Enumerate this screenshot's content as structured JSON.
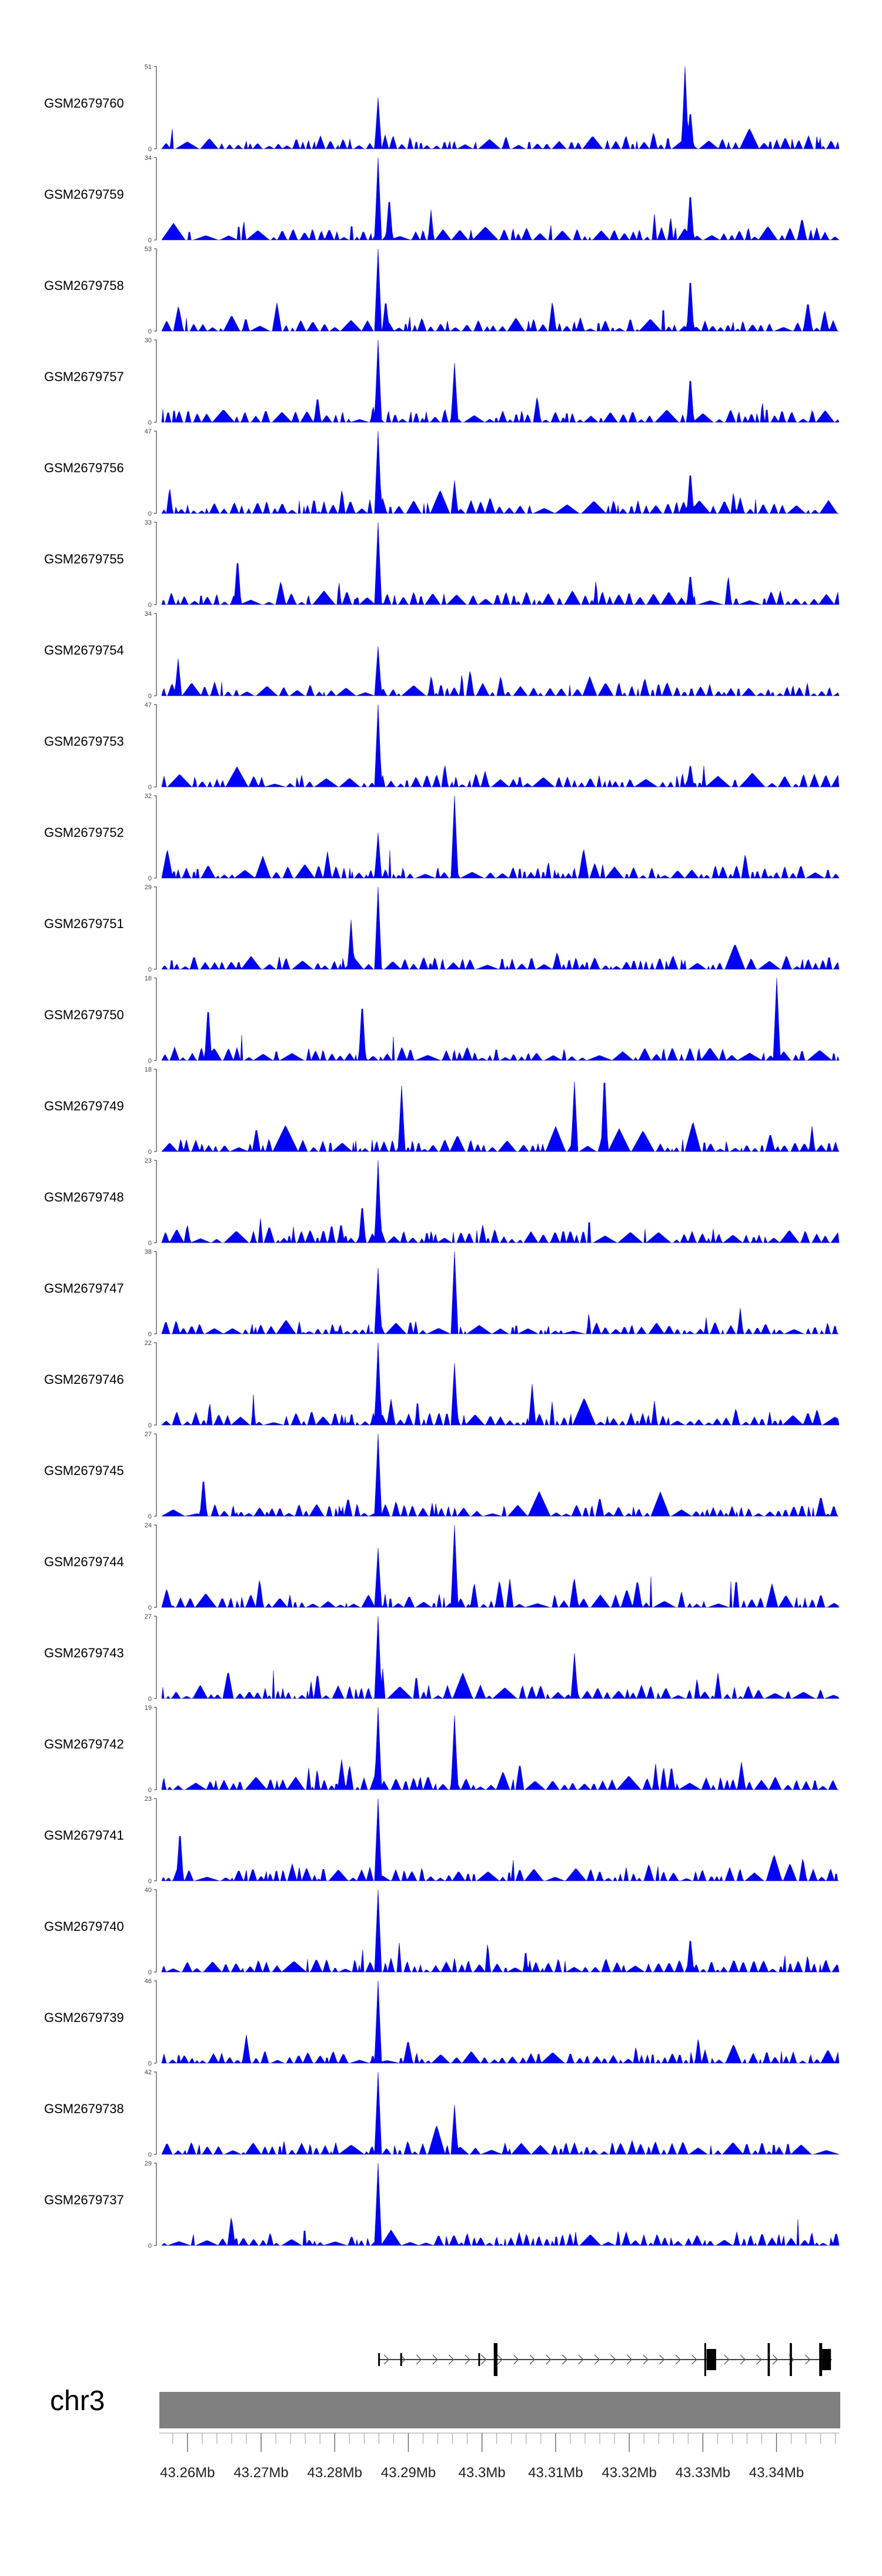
{
  "chart_data": {
    "type": "area",
    "title": "",
    "genome": {
      "chromosome": "chr3",
      "x_range_mb": [
        43.2565,
        43.3485
      ],
      "ticks_mb": [
        43.26,
        43.27,
        43.28,
        43.29,
        43.3,
        43.31,
        43.32,
        43.33,
        43.34
      ],
      "tick_labels": [
        "43.26Mb",
        "43.27Mb",
        "43.28Mb",
        "43.29Mb",
        "43.3Mb",
        "43.31Mb",
        "43.32Mb",
        "43.33Mb",
        "43.34Mb"
      ],
      "minor_tick_step_mb": 0.002
    },
    "tracks": [
      {
        "name": "GSM2679760",
        "ymax": 51,
        "ymin": 0,
        "peaks": [
          [
            43.2859,
            0.62
          ],
          [
            43.3276,
            1.0
          ],
          [
            43.3283,
            0.5
          ]
        ]
      },
      {
        "name": "GSM2679759",
        "ymax": 34,
        "ymin": 0,
        "peaks": [
          [
            43.2859,
            1.0
          ],
          [
            43.2874,
            0.55
          ],
          [
            43.3283,
            0.62
          ]
        ]
      },
      {
        "name": "GSM2679758",
        "ymax": 53,
        "ymin": 0,
        "peaks": [
          [
            43.2859,
            1.0
          ],
          [
            43.2869,
            0.4
          ],
          [
            43.3283,
            0.7
          ]
        ]
      },
      {
        "name": "GSM2679757",
        "ymax": 30,
        "ymin": 0,
        "peaks": [
          [
            43.2859,
            1.0
          ],
          [
            43.2963,
            0.72
          ],
          [
            43.3283,
            0.6
          ]
        ]
      },
      {
        "name": "GSM2679756",
        "ymax": 47,
        "ymin": 0,
        "peaks": [
          [
            43.2859,
            1.0
          ],
          [
            43.2963,
            0.4
          ],
          [
            43.3283,
            0.55
          ]
        ]
      },
      {
        "name": "GSM2679755",
        "ymax": 33,
        "ymin": 0,
        "peaks": [
          [
            43.2859,
            1.0
          ],
          [
            43.2668,
            0.6
          ],
          [
            43.3283,
            0.4
          ]
        ]
      },
      {
        "name": "GSM2679754",
        "ymax": 34,
        "ymin": 0,
        "peaks": [
          [
            43.2859,
            0.6
          ],
          [
            43.2587,
            0.45
          ]
        ]
      },
      {
        "name": "GSM2679753",
        "ymax": 47,
        "ymin": 0,
        "peaks": [
          [
            43.2859,
            1.0
          ],
          [
            43.3283,
            0.3
          ]
        ]
      },
      {
        "name": "GSM2679752",
        "ymax": 32,
        "ymin": 0,
        "peaks": [
          [
            43.2963,
            1.0
          ],
          [
            43.2859,
            0.55
          ]
        ]
      },
      {
        "name": "GSM2679751",
        "ymax": 29,
        "ymin": 0,
        "peaks": [
          [
            43.2859,
            1.0
          ],
          [
            43.2822,
            0.6
          ]
        ]
      },
      {
        "name": "GSM2679750",
        "ymax": 18,
        "ymin": 0,
        "peaks": [
          [
            43.34,
            1.0
          ],
          [
            43.2837,
            0.75
          ],
          [
            43.2628,
            0.7
          ]
        ]
      },
      {
        "name": "GSM2679749",
        "ymax": 18,
        "ymin": 0,
        "peaks": [
          [
            43.3166,
            1.0
          ],
          [
            43.2891,
            0.8
          ],
          [
            43.3126,
            0.85
          ]
        ]
      },
      {
        "name": "GSM2679748",
        "ymax": 23,
        "ymin": 0,
        "peaks": [
          [
            43.2859,
            1.0
          ],
          [
            43.2837,
            0.5
          ]
        ]
      },
      {
        "name": "GSM2679747",
        "ymax": 38,
        "ymin": 0,
        "peaks": [
          [
            43.2963,
            1.0
          ],
          [
            43.2859,
            0.8
          ]
        ]
      },
      {
        "name": "GSM2679746",
        "ymax": 22,
        "ymin": 0,
        "peaks": [
          [
            43.2859,
            1.0
          ],
          [
            43.2963,
            0.75
          ],
          [
            43.3068,
            0.5
          ]
        ]
      },
      {
        "name": "GSM2679745",
        "ymax": 27,
        "ymin": 0,
        "peaks": [
          [
            43.2859,
            1.0
          ],
          [
            43.2622,
            0.5
          ]
        ]
      },
      {
        "name": "GSM2679744",
        "ymax": 24,
        "ymin": 0,
        "peaks": [
          [
            43.2963,
            1.0
          ],
          [
            43.2859,
            0.72
          ]
        ]
      },
      {
        "name": "GSM2679743",
        "ymax": 27,
        "ymin": 0,
        "peaks": [
          [
            43.2859,
            1.0
          ],
          [
            43.3126,
            0.55
          ]
        ]
      },
      {
        "name": "GSM2679742",
        "ymax": 19,
        "ymin": 0,
        "peaks": [
          [
            43.2859,
            1.0
          ],
          [
            43.2963,
            0.9
          ]
        ]
      },
      {
        "name": "GSM2679741",
        "ymax": 23,
        "ymin": 0,
        "peaks": [
          [
            43.2859,
            1.0
          ],
          [
            43.259,
            0.65
          ]
        ]
      },
      {
        "name": "GSM2679740",
        "ymax": 40,
        "ymin": 0,
        "peaks": [
          [
            43.2859,
            1.0
          ],
          [
            43.3283,
            0.45
          ]
        ]
      },
      {
        "name": "GSM2679739",
        "ymax": 46,
        "ymin": 0,
        "peaks": [
          [
            43.2859,
            1.0
          ]
        ]
      },
      {
        "name": "GSM2679738",
        "ymax": 42,
        "ymin": 0,
        "peaks": [
          [
            43.2859,
            1.0
          ],
          [
            43.2963,
            0.6
          ]
        ]
      },
      {
        "name": "GSM2679737",
        "ymax": 29,
        "ymin": 0,
        "peaks": [
          [
            43.2859,
            1.0
          ]
        ]
      }
    ],
    "gene_model": {
      "strand": "+",
      "start_mb": 43.2859,
      "end_mb": 43.3475,
      "exons": [
        {
          "start_mb": 43.2859,
          "end_mb": 43.2861,
          "height": "thin"
        },
        {
          "start_mb": 43.2889,
          "end_mb": 43.2891,
          "height": "thin"
        },
        {
          "start_mb": 43.2995,
          "end_mb": 43.2997,
          "height": "thin"
        },
        {
          "start_mb": 43.3016,
          "end_mb": 43.3021,
          "height": "tall"
        },
        {
          "start_mb": 43.3302,
          "end_mb": 43.3304,
          "height": "tall"
        },
        {
          "start_mb": 43.3305,
          "end_mb": 43.3318,
          "height": "medium"
        },
        {
          "start_mb": 43.3388,
          "end_mb": 43.3391,
          "height": "tall"
        },
        {
          "start_mb": 43.3418,
          "end_mb": 43.3421,
          "height": "tall"
        },
        {
          "start_mb": 43.3458,
          "end_mb": 43.3462,
          "height": "tall"
        },
        {
          "start_mb": 43.3462,
          "end_mb": 43.3474,
          "height": "medium"
        }
      ]
    },
    "colors": {
      "signal": "#0000ff",
      "axis": "#444444",
      "ideogram": "#808080",
      "gene": "#000000",
      "label": "#000000"
    }
  }
}
